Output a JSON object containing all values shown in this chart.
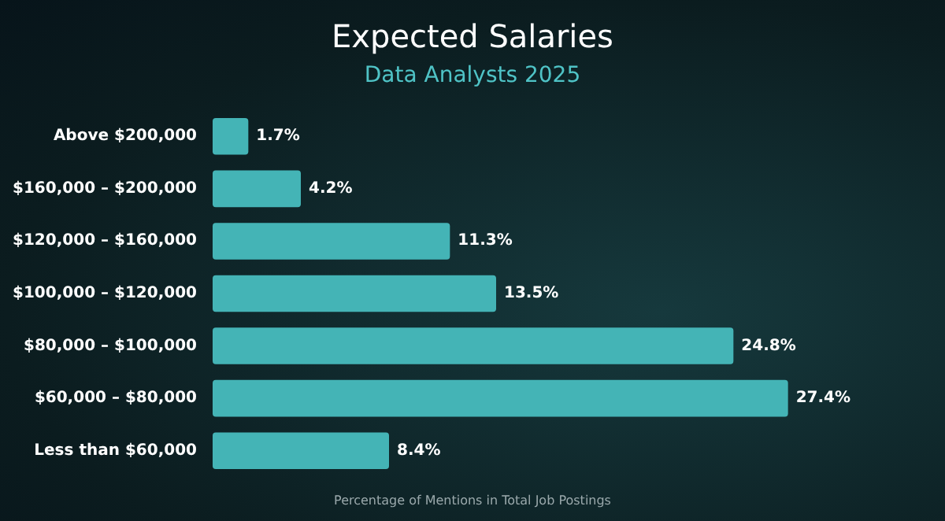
{
  "chart_data": {
    "type": "bar",
    "orientation": "horizontal",
    "title": "Expected Salaries",
    "subtitle": "Data Analysts 2025",
    "xlabel": "Percentage of Mentions in Total Job Postings",
    "categories": [
      "Above $200,000",
      "$160,000 – $200,000",
      "$120,000 – $160,000",
      "$100,000 – $120,000",
      "$80,000 – $100,000",
      "$60,000 – $80,000",
      "Less than $60,000"
    ],
    "values": [
      1.7,
      4.2,
      11.3,
      13.5,
      24.8,
      27.4,
      8.4
    ],
    "value_labels": [
      "1.7%",
      "4.2%",
      "11.3%",
      "13.5%",
      "24.8%",
      "27.4%",
      "8.4%"
    ],
    "color": "#44b4b6"
  }
}
